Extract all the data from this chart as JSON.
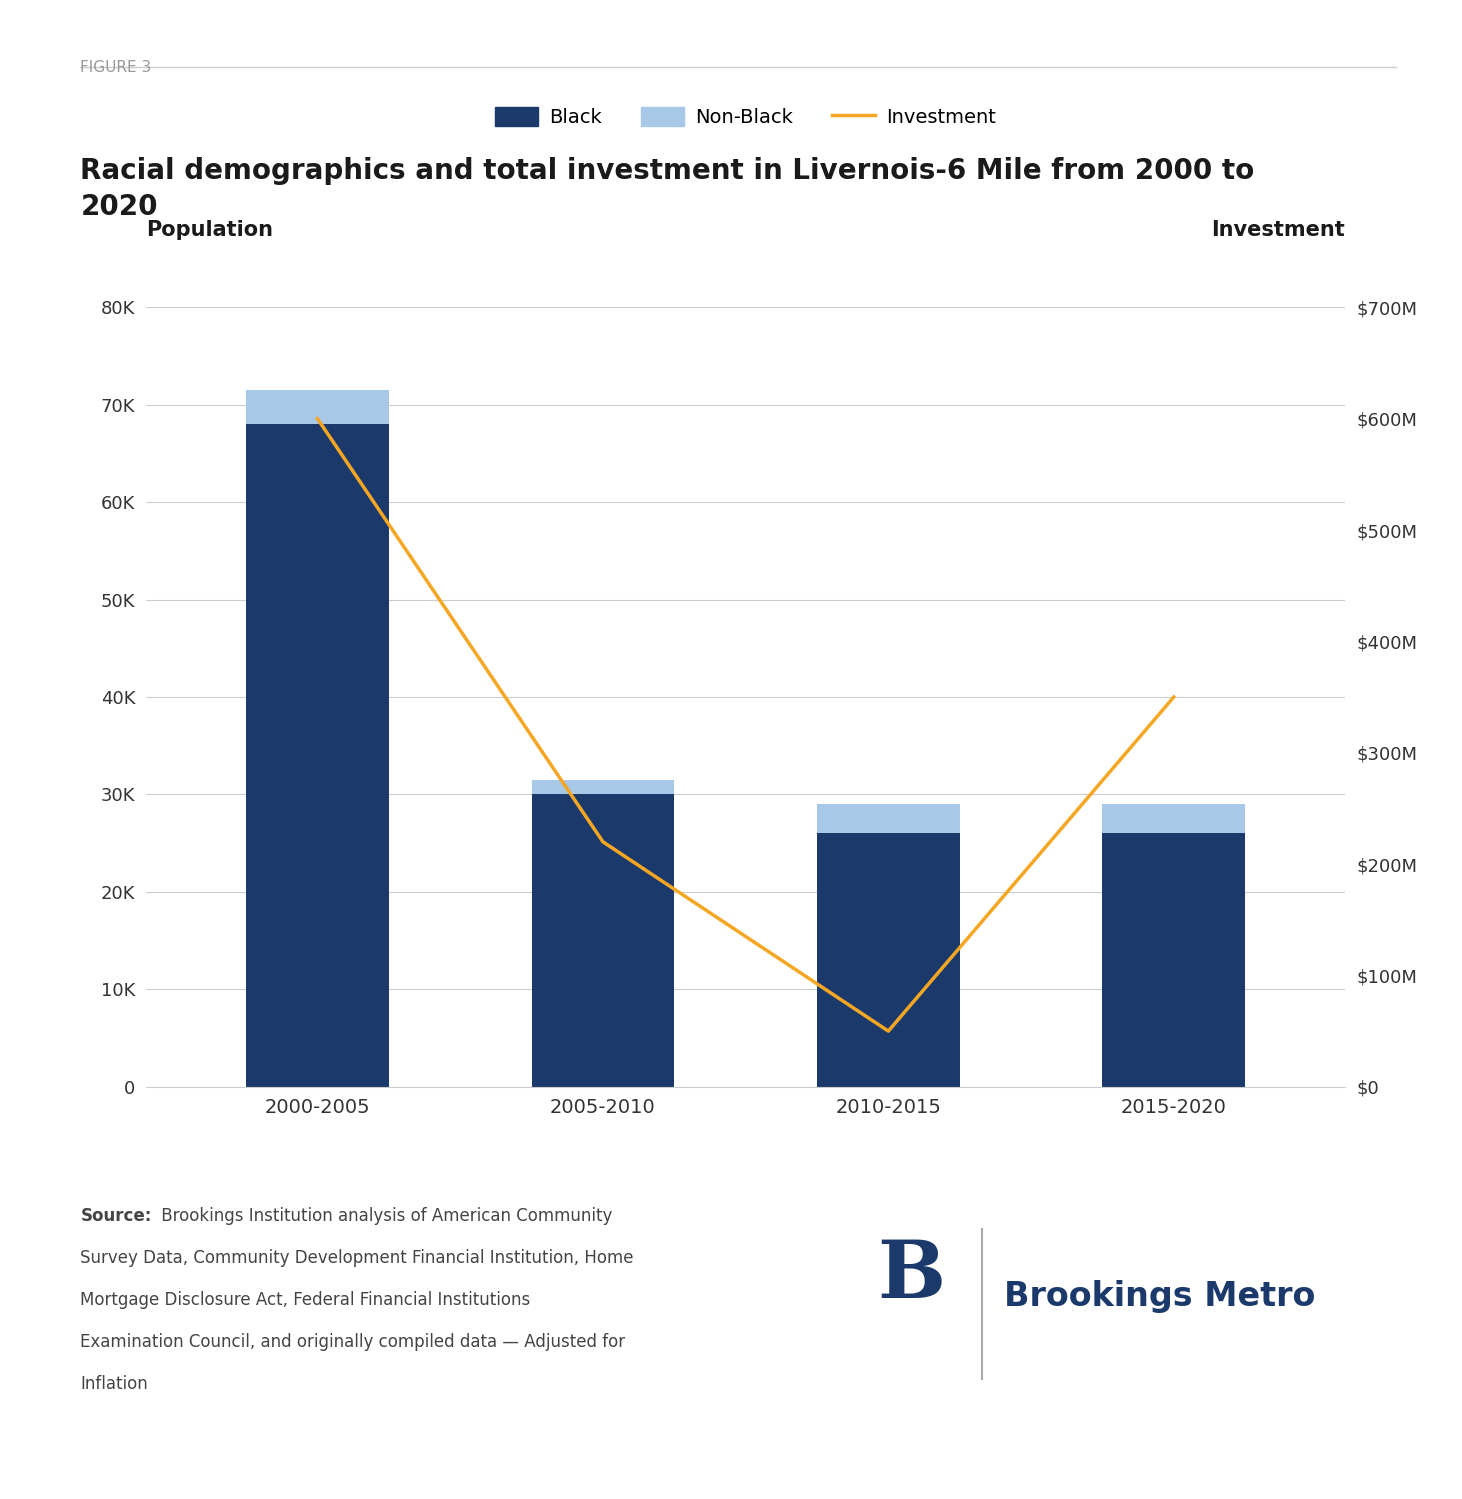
{
  "categories": [
    "2000-2005",
    "2005-2010",
    "2010-2015",
    "2015-2020"
  ],
  "black_pop": [
    68000,
    30000,
    26000,
    26000
  ],
  "nonblack_pop": [
    3500,
    1500,
    3000,
    3000
  ],
  "investment": [
    600,
    220,
    50,
    350
  ],
  "bar_color_black": "#1B3A6B",
  "bar_color_nonblack": "#A8C8E8",
  "line_color": "#F5A623",
  "background_color": "#FFFFFF",
  "figure_label": "FIGURE 3",
  "title_line1": "Racial demographics and total investment in Livernois-6 Mile from 2000 to",
  "title_line2": "2020",
  "ylabel_left": "Population",
  "ylabel_right": "Investment",
  "ylim_left": [
    0,
    80000
  ],
  "ylim_right": [
    0,
    700
  ],
  "yticks_left": [
    0,
    10000,
    20000,
    30000,
    40000,
    50000,
    60000,
    70000,
    80000
  ],
  "ytick_labels_left": [
    "0",
    "10K",
    "20K",
    "30K",
    "40K",
    "50K",
    "60K",
    "70K",
    "80K"
  ],
  "yticks_right": [
    0,
    100,
    200,
    300,
    400,
    500,
    600,
    700
  ],
  "ytick_labels_right": [
    "$0",
    "$100M",
    "$200M",
    "$300M",
    "$400M",
    "$500M",
    "$600M",
    "$700M"
  ],
  "source_bold": "Source:",
  "source_rest": " Brookings Institution analysis of American Community Survey Data, Community Development Financial Institution, Home Mortgage Disclosure Act, Federal Financial Institutions Examination Council, and originally compiled data — Adjusted for Inflation",
  "bar_width": 0.5,
  "grid_color": "#CCCCCC",
  "tick_color": "#333333",
  "label_color": "#1a1a1a",
  "figure_label_color": "#999999",
  "brookings_color": "#1B3A6B"
}
